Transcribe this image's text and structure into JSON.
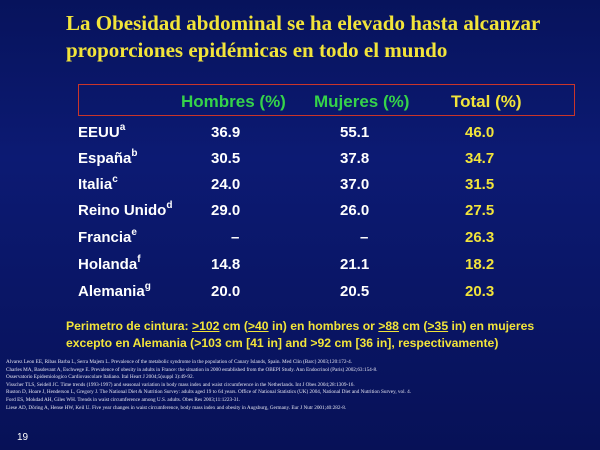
{
  "title_line1": "La Obesidad abdominal se ha elevado hasta alcanzar",
  "title_line2": "proporciones epidémicas en todo el mundo",
  "headers": {
    "men": "Hombres (%)",
    "women": "Mujeres (%)",
    "total": "Total (%)"
  },
  "rows": [
    {
      "country": "EEUU",
      "sup": "a",
      "men": "36.9",
      "women": "55.1",
      "total": "46.0"
    },
    {
      "country": "España",
      "sup": "b",
      "men": "30.5",
      "women": "37.8",
      "total": "34.7"
    },
    {
      "country": "Italia",
      "sup": "c",
      "men": "24.0",
      "women": "37.0",
      "total": "31.5"
    },
    {
      "country": "Reino Unido",
      "sup": "d",
      "men": "29.0",
      "women": "26.0",
      "total": "27.5"
    },
    {
      "country": "Francia",
      "sup": "e",
      "men": "–",
      "women": "–",
      "total": "26.3"
    },
    {
      "country": "Holanda",
      "sup": "f",
      "men": "14.8",
      "women": "21.1",
      "total": "18.2"
    },
    {
      "country": "Alemania",
      "sup": "g",
      "men": "20.0",
      "women": "20.5",
      "total": "20.3"
    }
  ],
  "note": {
    "p1": "Perimetro de cintura: ",
    "u1": ">102",
    "p2": " cm (",
    "u2": ">40",
    "p3": " in) en hombres or ",
    "u3": ">88",
    "p4": " cm (",
    "u4": ">35",
    "p5": " in) en mujeres",
    "line2": "excepto en Alemania (>103 cm [41 in] and >92 cm [36 in], respectivamente)"
  },
  "references": [
    "Alvarez Leon EE, Ribas Barba L, Serra Majem L. Prevalence of the metabolic syndrome in the population of Canary Islands, Spain. Med Clin (Barc) 2003;120:172-4.",
    "Charles MA, Basdevant A, Eschwege E. Prevalence of obesity in adults in France: the situation in 2000 established from the OBEPI Study. Ann Endocrinol (Paris) 2002;63:154-8.",
    "Osservatorio Epidemiologico Cardiovascolare Italiano. Ital Heart J 2004;5(suppl 3):49-92.",
    "Visscher TLS, Seidell JC. Time trends (1993-1997) and seasonal variation in body mass index and waist circumference in the Netherlands. Int J Obes 2004;28:1309-16.",
    "Ruston D, Hoare J, Henderson L, Gregory J. The National Diet & Nutrition Survey: adults aged 19 to 64 years. Office of National Statistics (UK) 2004, National Diet and Nutrition Survey, vol. 4.",
    "Ford ES, Mokdad AH, Giles WH. Trends in waist circumference among U.S. adults. Obes Res 2003;11:1223-31.",
    "Liese AD, Döring A, Hense HW, Keil U. Five year changes in waist circumference, body mass index and obesity in Augsburg, Germany. Eur J Nutr 2001;40:282-8."
  ],
  "page_number": "19",
  "colors": {
    "background": "#0c1a73",
    "title": "#f2e43a",
    "header_green": "#35d34a",
    "box_border": "#c9352a"
  }
}
